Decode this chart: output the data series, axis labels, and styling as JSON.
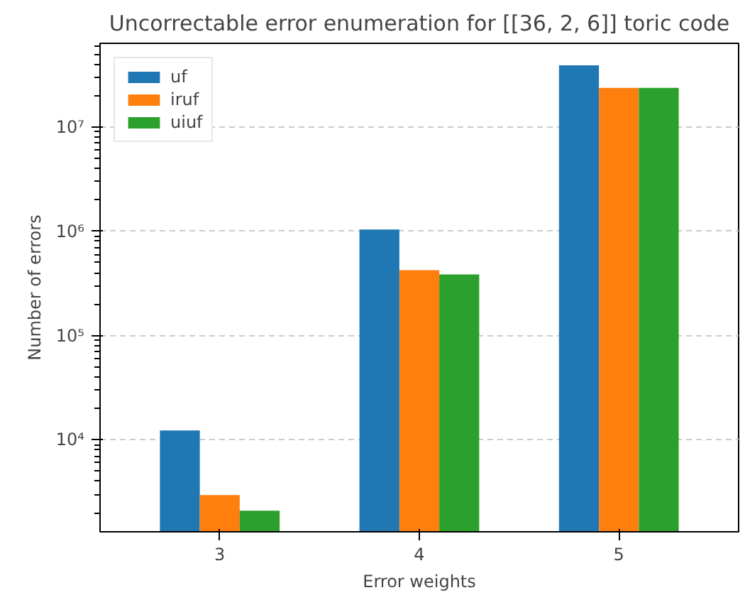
{
  "chart_data": {
    "type": "bar",
    "title": "Uncorrectable error enumeration for [[36, 2, 6]] toric code",
    "xlabel": "Error weights",
    "ylabel": "Number of errors",
    "categories": [
      "3",
      "4",
      "5"
    ],
    "series": [
      {
        "name": "uf",
        "color": "#1f77b4",
        "values": [
          12300,
          1040000,
          39000000
        ]
      },
      {
        "name": "iruf",
        "color": "#ff7f0e",
        "values": [
          2950,
          424000,
          23700000
        ]
      },
      {
        "name": "uiuf",
        "color": "#2ca02c",
        "values": [
          2090,
          385000,
          23700000
        ]
      }
    ],
    "log": "y",
    "ylim": [
      1310,
      63500000
    ],
    "yticks": [
      {
        "value": 10000,
        "label": "10⁴"
      },
      {
        "value": 100000,
        "label": "10⁵"
      },
      {
        "value": 1000000,
        "label": "10⁶"
      },
      {
        "value": 10000000,
        "label": "10⁷"
      }
    ],
    "grid": "y",
    "legend": "top left"
  }
}
